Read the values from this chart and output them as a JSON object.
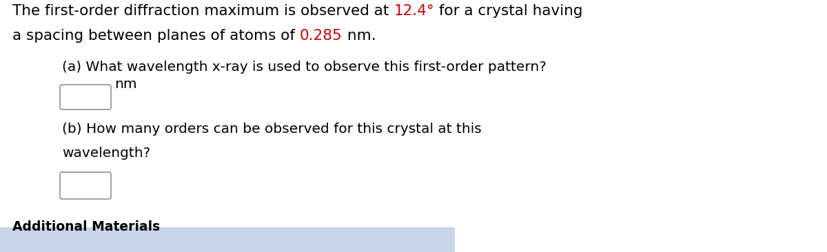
{
  "background_color": "#ffffff",
  "line1_parts": [
    {
      "text": "The first-order diffraction maximum is observed at ",
      "color": "#000000"
    },
    {
      "text": "12.4°",
      "color": "#cc0000"
    },
    {
      "text": " for a crystal having",
      "color": "#000000"
    }
  ],
  "line2_parts": [
    {
      "text": "a spacing between planes of atoms of ",
      "color": "#000000"
    },
    {
      "text": "0.285",
      "color": "#cc0000"
    },
    {
      "text": " nm.",
      "color": "#000000"
    }
  ],
  "part_a_text": "(a) What wavelength x-ray is used to observe this first-order pattern?",
  "part_a_unit": "nm",
  "part_b_line1": "(b) How many orders can be observed for this crystal at this",
  "part_b_line2": "wavelength?",
  "additional_text": "Additional Materials",
  "additional_bg": "#c8d4e8",
  "font_size_main": 15.5,
  "font_size_sub": 14.5,
  "font_family": "DejaVu Sans"
}
